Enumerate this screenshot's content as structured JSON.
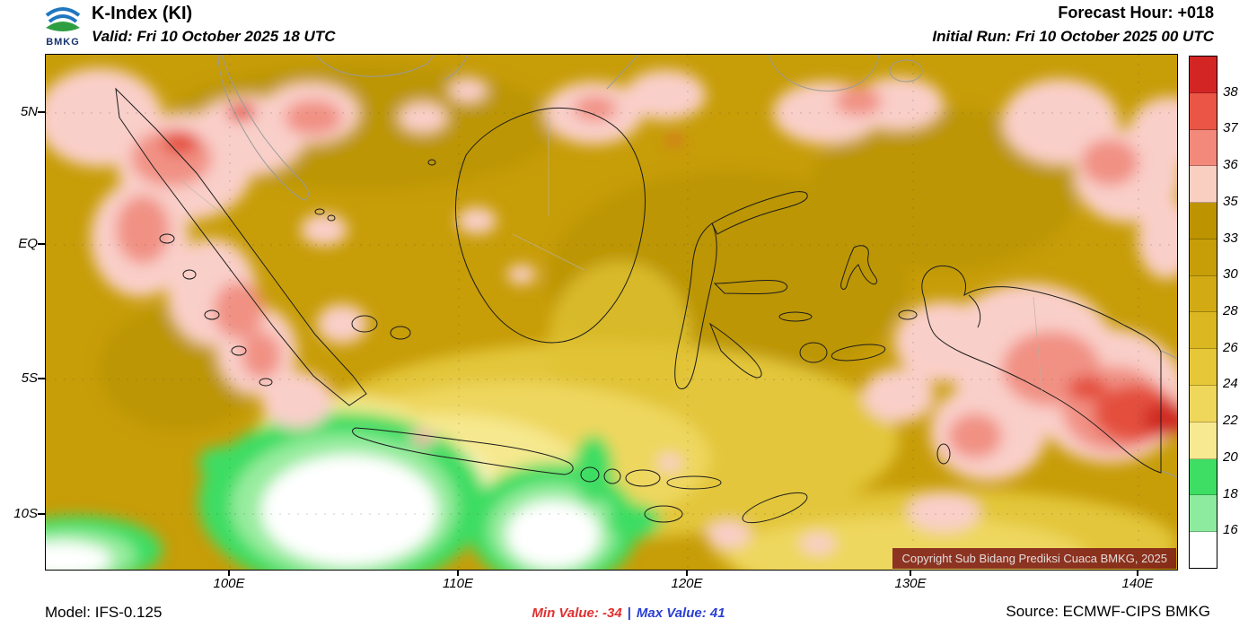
{
  "header": {
    "logo_text": "BMKG",
    "title": "K-Index (KI)",
    "valid_line": "Valid: Fri 10 October 2025 18 UTC",
    "forecast_hour": "Forecast Hour: +018",
    "initial_run": "Initial Run: Fri 10 October 2025 00 UTC"
  },
  "map": {
    "lat_labels": [
      "5N",
      "EQ",
      "5S",
      "10S"
    ],
    "lon_labels": [
      "100E",
      "110E",
      "120E",
      "130E",
      "140E"
    ],
    "copyright": "Copyright Sub Bidang Prediksi Cuaca BMKG, 2025"
  },
  "colorbar": {
    "labels": [
      "38",
      "37",
      "36",
      "35",
      "33",
      "30",
      "28",
      "26",
      "24",
      "22",
      "20",
      "18",
      "16"
    ],
    "segment_colors": [
      "#d42525",
      "#ea5545",
      "#f2897b",
      "#f9cfc2",
      "#bd9400",
      "#c79e08",
      "#d1aa14",
      "#dbb722",
      "#e6c737",
      "#efd75c",
      "#f7e992",
      "#3edd63",
      "#8deb9f",
      "#ffffff"
    ]
  },
  "footer": {
    "model": "Model: IFS-0.125",
    "min_value": "Min Value: -34",
    "separator": "|",
    "max_value": "Max Value:  41",
    "source": "Source: ECMWF-CIPS BMKG"
  },
  "colors": {
    "min_text": "#e03030",
    "max_text": "#2b3fd6",
    "copyright_bg": "rgba(122,22,22,0.85)",
    "base_field": "#c79d08"
  },
  "chart_data": {
    "type": "heatmap",
    "title": "K-Index (KI)",
    "legend_values": [
      38,
      37,
      36,
      35,
      33,
      30,
      28,
      26,
      24,
      22,
      20,
      18,
      16
    ],
    "lat_ticks": [
      "5N",
      "EQ",
      "5S",
      "10S"
    ],
    "lon_ticks": [
      "100E",
      "110E",
      "120E",
      "130E",
      "140E"
    ],
    "min_value": -34,
    "max_value": 41,
    "legend_position": "right",
    "notes": "K-Index forecast field over Indonesia; dominant values 28-35 (gold), lows 14-20 (green/white) south of Java, highs 35-41 (pink/red) over N Sumatra and Papua"
  }
}
